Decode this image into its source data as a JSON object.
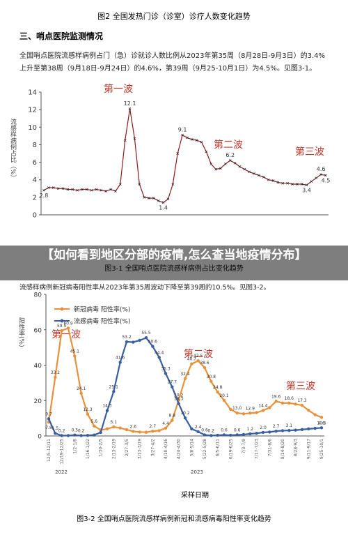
{
  "doc": {
    "fig2_caption": "图2 全国发热门诊（诊室）诊疗人数变化趋势",
    "heading": "三、哨点医院监测情况",
    "para1": "全国哨点医院流感样病例占门（急）诊就诊人数比例从2023年第35周（8月28日-9月3日）的3.4%上升至第38周（9月18日-9月24日）的4.6%，第39周（9月25-10月1日）为4.5%。见图3-1。",
    "banner": "【如何看到地区分部的疫情,怎么查当地疫情分布】",
    "para2": "流感样病例新冠病毒阳性率从2023年第35周波动下降至第39周的10.5%。见图3-2。"
  },
  "chart_data": [
    {
      "type": "line",
      "title": "图3-1 全国哨点医院流感样病例占比变化趋势",
      "ylabel": "流感样病例占比（%）",
      "ylim": [
        0,
        14
      ],
      "yticks": [
        0,
        2,
        4,
        6,
        8,
        10,
        12,
        14
      ],
      "grid": false,
      "color": "#8b1a1a",
      "marker": "x",
      "annotations": [
        "第一波",
        "第二波",
        "第三波"
      ],
      "categories": [
        null,
        null,
        null,
        null,
        null,
        null,
        null,
        null,
        null,
        null,
        null,
        null,
        null,
        null,
        null,
        null,
        null,
        null,
        null,
        null,
        null,
        null,
        null,
        null,
        null,
        null,
        null,
        null,
        null,
        null,
        null,
        null,
        null,
        null,
        null,
        null,
        null,
        null,
        null,
        null,
        null,
        null,
        null,
        null,
        null,
        null,
        null,
        null,
        null,
        null,
        null,
        null,
        null,
        null,
        null,
        null,
        null,
        null,
        null,
        null
      ],
      "values": [
        2.8,
        3.1,
        3.1,
        3.0,
        3.0,
        2.9,
        2.9,
        2.8,
        2.9,
        2.9,
        2.8,
        2.9,
        2.8,
        2.7,
        2.9,
        2.7,
        3.5,
        8.5,
        12.1,
        8.7,
        3.5,
        2.0,
        1.9,
        1.9,
        1.6,
        1.4,
        1.8,
        3.5,
        7.0,
        9.1,
        8.8,
        8.6,
        8.5,
        8.3,
        7.2,
        5.8,
        5.2,
        5.3,
        5.8,
        6.2,
        5.9,
        5.5,
        5.2,
        4.9,
        4.7,
        4.5,
        4.3,
        4.0,
        3.9,
        3.7,
        3.6,
        3.6,
        3.5,
        3.5,
        3.5,
        3.4,
        3.8,
        4.2,
        4.6,
        4.5
      ],
      "value_labels": [
        "2.8",
        null,
        null,
        null,
        null,
        null,
        null,
        null,
        null,
        null,
        null,
        null,
        null,
        null,
        null,
        null,
        null,
        null,
        "12.1",
        null,
        null,
        null,
        null,
        null,
        null,
        "1.4",
        null,
        null,
        null,
        "9.1",
        null,
        null,
        null,
        null,
        null,
        null,
        null,
        null,
        null,
        "6.2",
        null,
        null,
        null,
        null,
        null,
        null,
        null,
        null,
        null,
        null,
        null,
        null,
        null,
        null,
        null,
        "3.4",
        null,
        null,
        "4.6",
        "4.5"
      ]
    },
    {
      "type": "line",
      "title": "图3-2 全国哨点医院流感样病例新冠和流感病毒阳性率变化趋势",
      "ylabel": "阳性率(%)",
      "xlabel": "采样日期",
      "ylim": [
        0,
        80
      ],
      "yticks": [
        0,
        20,
        40,
        60,
        80
      ],
      "grid": false,
      "marker": "circle",
      "legend": "upper left",
      "annotations": [
        "第一波",
        "第二波",
        "第三波"
      ],
      "year_labels": [
        "2022",
        "2023"
      ],
      "categories": [
        "12/5-12/11",
        null,
        "12/19-12/25",
        null,
        "1/2-1/8",
        null,
        "1/16-1/22",
        null,
        "1/30-2/5",
        null,
        "2/13-2/19",
        null,
        "2/27-3/5",
        null,
        "3/13-3/19",
        null,
        "3/27-4/2",
        null,
        "4/10-4/16",
        null,
        "4/24-4/30",
        null,
        "5/8-5/14",
        null,
        "5/22-5/28",
        null,
        "6/5-6/11",
        null,
        "6/19-6/25",
        null,
        "7/3-7/9",
        null,
        "7/17-7/23",
        null,
        "7/31-8/6",
        null,
        "8/14-8/20",
        null,
        "8/28-9/3",
        null,
        "9/11-9/17",
        null,
        "9/25-10/1"
      ],
      "series": [
        {
          "name": "新冠病毒 阳性率(%)",
          "color": "#e8913a",
          "values": [
            7.8,
            33.2,
            59.5,
            60.9,
            45.1,
            24.1,
            12.3,
            5.6,
            3.4,
            4.0,
            5.1,
            4.5,
            3.5,
            2.6,
            2.2,
            2.1,
            2.7,
            3.0,
            4.4,
            8.8,
            20.2,
            32.4,
            40.7,
            42.5,
            38.6,
            30.8,
            24.8,
            20.1,
            15.0,
            13.0,
            12.5,
            12.9,
            13.2,
            14.4,
            16.0,
            19.6,
            18.6,
            18.6,
            18.0,
            17.3,
            14.5,
            12.0,
            10.5
          ],
          "value_labels": [
            "7.8",
            "33.2",
            "59.5",
            "60.9",
            "45.1",
            "24.1",
            "12.3",
            "5.6",
            null,
            null,
            "5.1",
            null,
            null,
            "2.6",
            null,
            null,
            "2.7",
            null,
            "4.4",
            "8.8",
            "20.2",
            "32.4",
            "40.7",
            "42.5",
            "38.6",
            "30.8",
            "24.8",
            "20.1",
            null,
            "13.0",
            null,
            "12.9",
            null,
            "14.4",
            null,
            "19.6",
            null,
            "18.6",
            null,
            "17.3",
            null,
            null,
            "10.5"
          ]
        },
        {
          "name": "流感病毒 阳性率(%)",
          "color": "#3a5fa0",
          "values": [
            9.7,
            1.5,
            0.2,
            0.2,
            0.5,
            0.2,
            0.3,
            0.5,
            2.0,
            14.3,
            25.1,
            41.6,
            53.2,
            53.0,
            54.0,
            55.5,
            50.6,
            44.4,
            35.3,
            27.7,
            18.3,
            10.2,
            4.0,
            2.4,
            0.6,
            0.2,
            0.4,
            0.6,
            0.4,
            0.6,
            0.8,
            1.2,
            1.5,
            2.0,
            2.2,
            2.7,
            3.0,
            3.1,
            3.3,
            3.6,
            4.0,
            4.3,
            4.6
          ],
          "value_labels": [
            "9.7",
            "1.5",
            "0.2",
            null,
            "0.5",
            "0.2",
            null,
            null,
            null,
            "14.3",
            "25.1",
            "41.6",
            "53.2",
            null,
            null,
            "55.5",
            "50.6",
            "44.4",
            "35.3",
            "27.7",
            "18.3",
            "10.2",
            null,
            "2.4",
            "0.6",
            "0.2",
            null,
            "0.6",
            null,
            "0.6",
            null,
            "1.2",
            null,
            "2.0",
            null,
            "2.7",
            null,
            "3.1",
            null,
            null,
            null,
            null,
            "4.6"
          ]
        }
      ]
    }
  ]
}
